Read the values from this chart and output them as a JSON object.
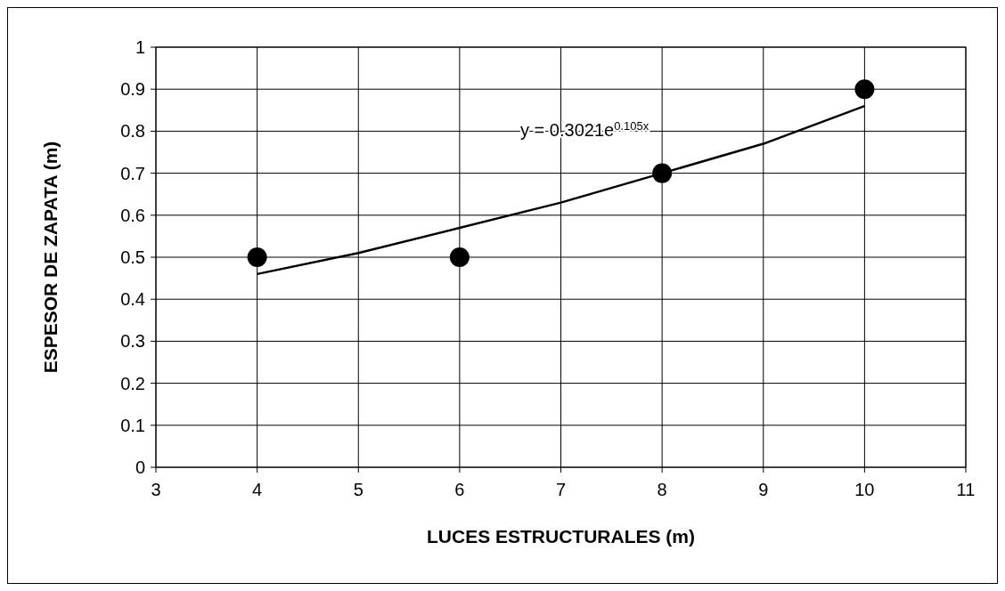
{
  "chart_data": {
    "type": "scatter",
    "xlabel": "LUCES ESTRUCTURALES (m)",
    "ylabel": "ESPESOR DE ZAPATA (m)",
    "series": [
      {
        "color": "#000000",
        "marker": "circle",
        "x": [
          4,
          6,
          8,
          10
        ],
        "values": [
          0.5,
          0.5,
          0.7,
          0.9
        ]
      },
      {
        "type": "line",
        "color": "#000000",
        "line_style": "solid",
        "x": [
          4,
          5,
          6,
          7,
          8,
          9,
          10
        ],
        "values": [
          0.46,
          0.51,
          0.57,
          0.63,
          0.7,
          0.77,
          0.86
        ]
      }
    ],
    "annotations": [
      "y = 0.3021e$^{0.105x}$"
    ],
    "xlim": [
      3,
      11
    ],
    "xticks": [
      3,
      4,
      5,
      6,
      7,
      8,
      9,
      10,
      11
    ],
    "ylim": [
      0,
      1
    ],
    "yticks": [
      0,
      0.1,
      0.2,
      0.3,
      0.4,
      0.5,
      0.6,
      0.7,
      0.8,
      0.9,
      1
    ],
    "grid": true
  }
}
